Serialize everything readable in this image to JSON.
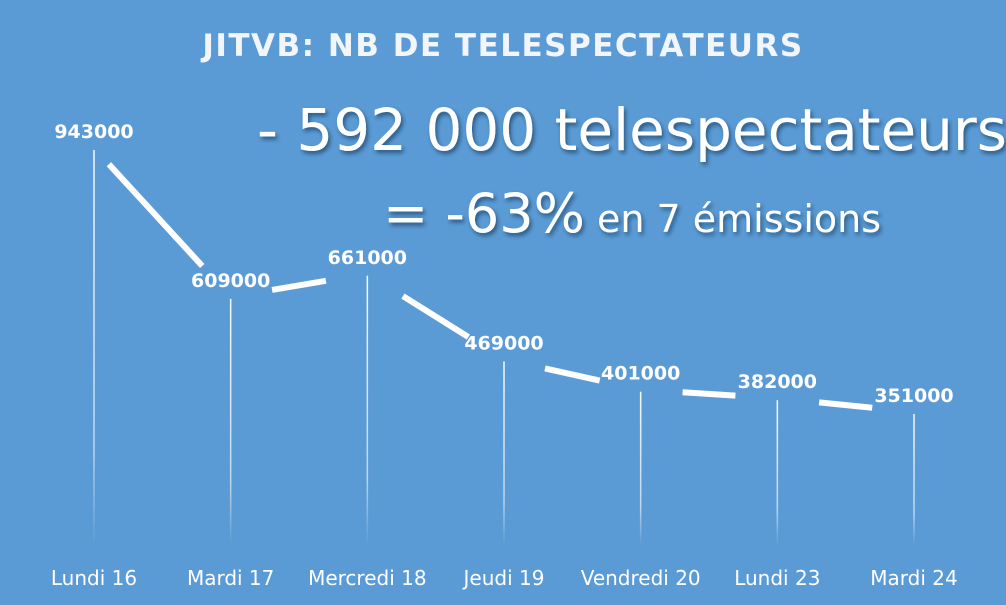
{
  "chart_data": {
    "type": "line",
    "title": "JITVB: NB DE TELESPECTATEURS",
    "categories": [
      "Lundi 16",
      "Mardi 17",
      "Mercredi 18",
      "Jeudi 19",
      "Vendredi 20",
      "Lundi 23",
      "Mardi 24"
    ],
    "values": [
      943000,
      609000,
      661000,
      469000,
      401000,
      382000,
      351000
    ],
    "data_labels": [
      "943000",
      "609000",
      "661000",
      "469000",
      "401000",
      "382000",
      "351000"
    ],
    "ylim": [
      0,
      1000000
    ],
    "grid": false,
    "legend": "none",
    "annotations": {
      "line1": "- 592 000 telespectateurs",
      "line2_main": "= -63%",
      "line2_rest": " en 7 émissions"
    }
  },
  "colors": {
    "background": "#5b9bd5",
    "line": "#ffffff",
    "text": "#ffffff"
  }
}
